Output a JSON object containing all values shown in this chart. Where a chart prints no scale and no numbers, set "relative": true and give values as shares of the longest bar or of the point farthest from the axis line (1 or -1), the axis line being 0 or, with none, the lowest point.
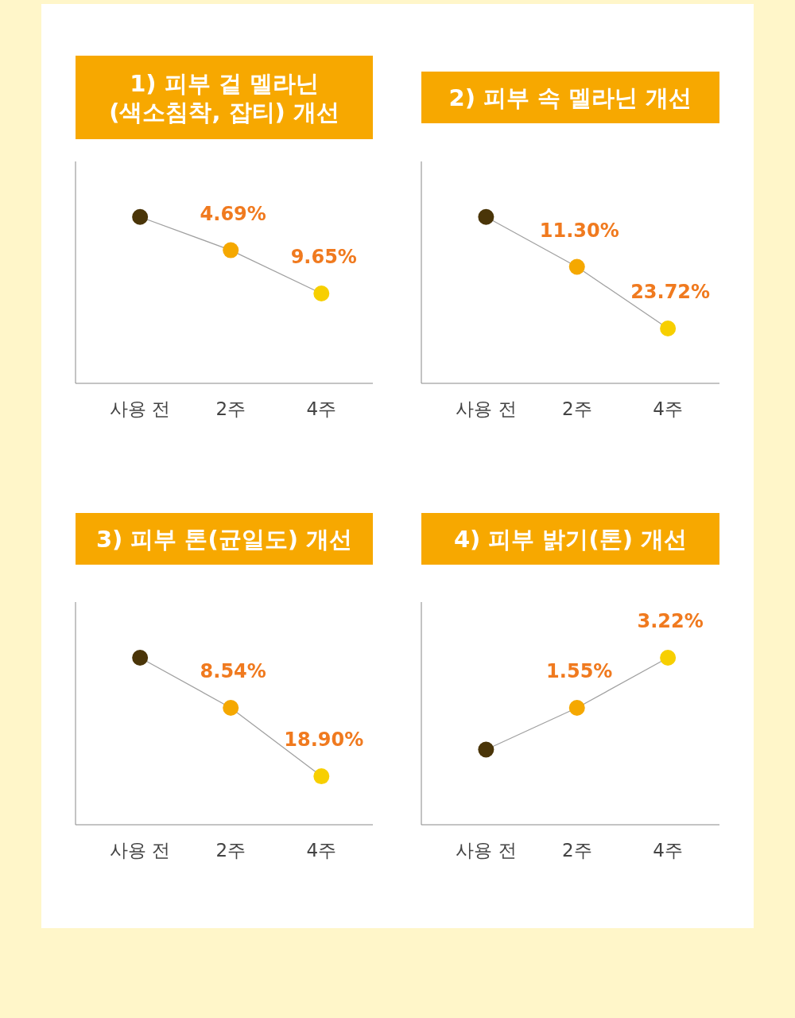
{
  "chart_data": [
    {
      "type": "line",
      "title": "1) 피부 겉 멜라닌\n(색소침착, 잡티) 개선",
      "categories": [
        "사용 전",
        "2주",
        "4주"
      ],
      "relative": true,
      "marker": "circle",
      "line_style": "solid",
      "series": [
        {
          "color": "#a0a0a0",
          "colors": [
            "#4a3508",
            "#f5a800",
            "#f7cf00"
          ],
          "values": [
            1,
            0.8,
            0.54
          ]
        }
      ],
      "annotations": [
        {
          "text": "4.69%",
          "x": "2주",
          "y": 0.8
        },
        {
          "text": "9.65%",
          "x": "4주",
          "y": 0.54
        }
      ]
    },
    {
      "type": "line",
      "title": "2) 피부 속 멜라닌 개선",
      "categories": [
        "사용 전",
        "2주",
        "4주"
      ],
      "relative": true,
      "marker": "circle",
      "line_style": "solid",
      "series": [
        {
          "color": "#a0a0a0",
          "colors": [
            "#4a3508",
            "#f5a800",
            "#f7cf00"
          ],
          "values": [
            1,
            0.7,
            0.33
          ]
        }
      ],
      "annotations": [
        {
          "text": "11.30%",
          "x": "2주",
          "y": 0.7
        },
        {
          "text": "23.72%",
          "x": "4주",
          "y": 0.33
        }
      ]
    },
    {
      "type": "line",
      "title": "3) 피부 톤(균일도) 개선",
      "categories": [
        "사용 전",
        "2주",
        "4주"
      ],
      "relative": true,
      "marker": "circle",
      "line_style": "solid",
      "series": [
        {
          "color": "#a0a0a0",
          "colors": [
            "#4a3508",
            "#f5a800",
            "#f7cf00"
          ],
          "values": [
            1,
            0.7,
            0.29
          ]
        }
      ],
      "annotations": [
        {
          "text": "8.54%",
          "x": "2주",
          "y": 0.7
        },
        {
          "text": "18.90%",
          "x": "4주",
          "y": 0.29
        }
      ]
    },
    {
      "type": "line",
      "title": "4) 피부 밝기(톤) 개선",
      "categories": [
        "사용 전",
        "2주",
        "4주"
      ],
      "relative": true,
      "marker": "circle",
      "line_style": "solid",
      "series": [
        {
          "color": "#a0a0a0",
          "colors": [
            "#4a3508",
            "#f5a800",
            "#f7cf00"
          ],
          "values": [
            0.45,
            0.7,
            1
          ]
        }
      ],
      "annotations": [
        {
          "text": "1.55%",
          "x": "2주",
          "y": 0.7
        },
        {
          "text": "3.22%",
          "x": "4주",
          "y": 1
        }
      ]
    }
  ]
}
